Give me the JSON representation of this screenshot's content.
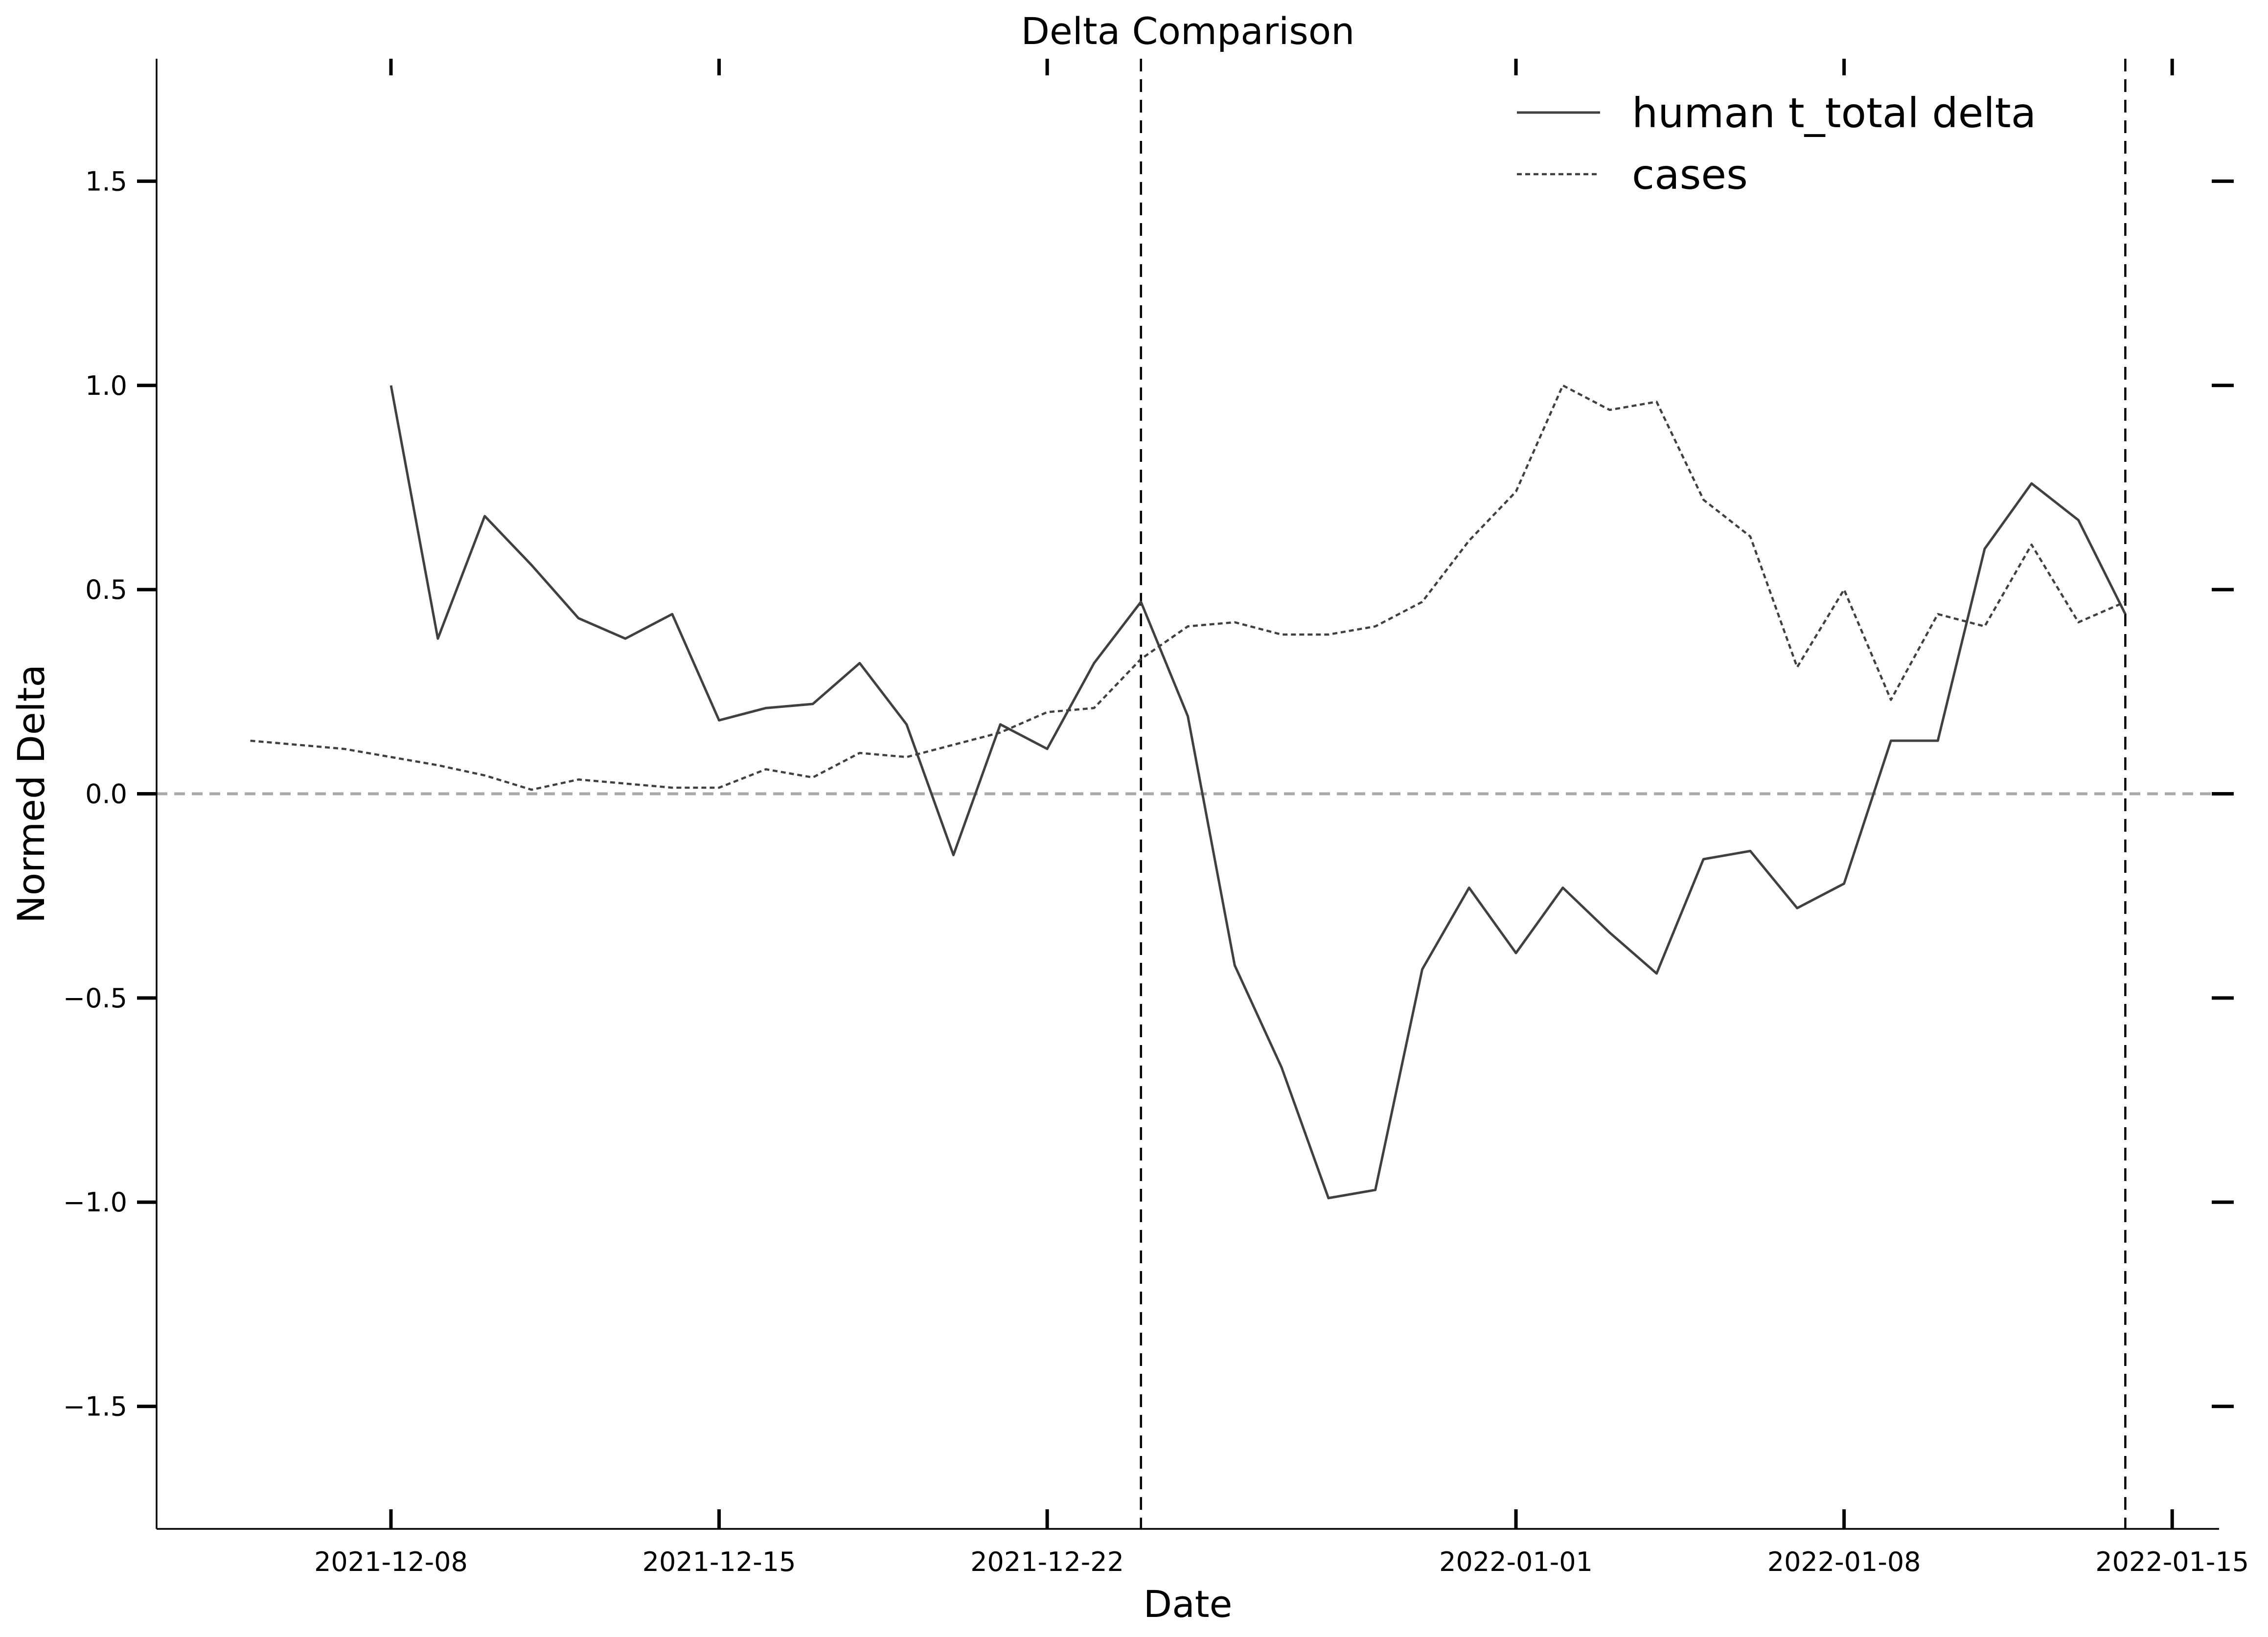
{
  "chart_data": {
    "type": "line",
    "title": "Delta Comparison",
    "xlabel": "Date",
    "ylabel": "Normed Delta",
    "xlim": [
      "2021-12-03",
      "2022-01-16"
    ],
    "ylim": [
      -1.8,
      1.8
    ],
    "x_ticks": [
      "2021-12-08",
      "2021-12-15",
      "2021-12-22",
      "2022-01-01",
      "2022-01-08",
      "2022-01-15"
    ],
    "y_ticks": [
      1.5,
      1.0,
      0.5,
      0.0,
      -0.5,
      -1.0,
      -1.5
    ],
    "y_tick_labels": [
      "1.5",
      "1.0",
      "0.5",
      "0.0",
      "−0.5",
      "−1.0",
      "−1.5"
    ],
    "grid": false,
    "legend_position": "top-right",
    "reference_lines": {
      "horizontal_zero": 0.0,
      "vertical_dates": [
        "2021-12-24",
        "2022-01-14"
      ]
    },
    "colors": {
      "line": "#404040",
      "zero_line": "#aaaaaa",
      "axis": "#000000"
    },
    "series": [
      {
        "name": "human t_total delta",
        "style": "solid",
        "x": [
          "2021-12-08",
          "2021-12-09",
          "2021-12-10",
          "2021-12-11",
          "2021-12-12",
          "2021-12-13",
          "2021-12-14",
          "2021-12-15",
          "2021-12-16",
          "2021-12-17",
          "2021-12-18",
          "2021-12-19",
          "2021-12-20",
          "2021-12-21",
          "2021-12-22",
          "2021-12-23",
          "2021-12-24",
          "2021-12-25",
          "2021-12-26",
          "2021-12-27",
          "2021-12-28",
          "2021-12-29",
          "2021-12-30",
          "2021-12-31",
          "2022-01-01",
          "2022-01-02",
          "2022-01-03",
          "2022-01-04",
          "2022-01-05",
          "2022-01-06",
          "2022-01-07",
          "2022-01-08",
          "2022-01-09",
          "2022-01-10",
          "2022-01-11",
          "2022-01-12",
          "2022-01-13",
          "2022-01-14"
        ],
        "values": [
          1.0,
          0.38,
          0.68,
          0.56,
          0.43,
          0.38,
          0.44,
          0.18,
          0.21,
          0.22,
          0.32,
          0.17,
          -0.15,
          0.17,
          0.11,
          0.32,
          0.47,
          0.19,
          -0.42,
          -0.67,
          -0.99,
          -0.97,
          -0.43,
          -0.23,
          -0.39,
          -0.23,
          -0.34,
          -0.44,
          -0.16,
          -0.14,
          -0.28,
          -0.22,
          0.13,
          0.13,
          0.6,
          0.76,
          0.67,
          0.44
        ]
      },
      {
        "name": "cases",
        "style": "dotted",
        "x": [
          "2021-12-05",
          "2021-12-06",
          "2021-12-07",
          "2021-12-08",
          "2021-12-09",
          "2021-12-10",
          "2021-12-11",
          "2021-12-12",
          "2021-12-13",
          "2021-12-14",
          "2021-12-15",
          "2021-12-16",
          "2021-12-17",
          "2021-12-18",
          "2021-12-19",
          "2021-12-20",
          "2021-12-21",
          "2021-12-22",
          "2021-12-23",
          "2021-12-24",
          "2021-12-25",
          "2021-12-26",
          "2021-12-27",
          "2021-12-28",
          "2021-12-29",
          "2021-12-30",
          "2021-12-31",
          "2022-01-01",
          "2022-01-02",
          "2022-01-03",
          "2022-01-04",
          "2022-01-05",
          "2022-01-06",
          "2022-01-07",
          "2022-01-08",
          "2022-01-09",
          "2022-01-10",
          "2022-01-11",
          "2022-01-12",
          "2022-01-13",
          "2022-01-14"
        ],
        "values": [
          0.13,
          0.12,
          0.11,
          0.09,
          0.07,
          0.045,
          0.01,
          0.035,
          0.025,
          0.015,
          0.015,
          0.06,
          0.04,
          0.1,
          0.09,
          0.12,
          0.15,
          0.2,
          0.21,
          0.33,
          0.41,
          0.42,
          0.39,
          0.39,
          0.41,
          0.47,
          0.62,
          0.74,
          1.0,
          0.94,
          0.96,
          0.72,
          0.63,
          0.31,
          0.5,
          0.23,
          0.44,
          0.41,
          0.61,
          0.42,
          0.47
        ]
      }
    ]
  }
}
